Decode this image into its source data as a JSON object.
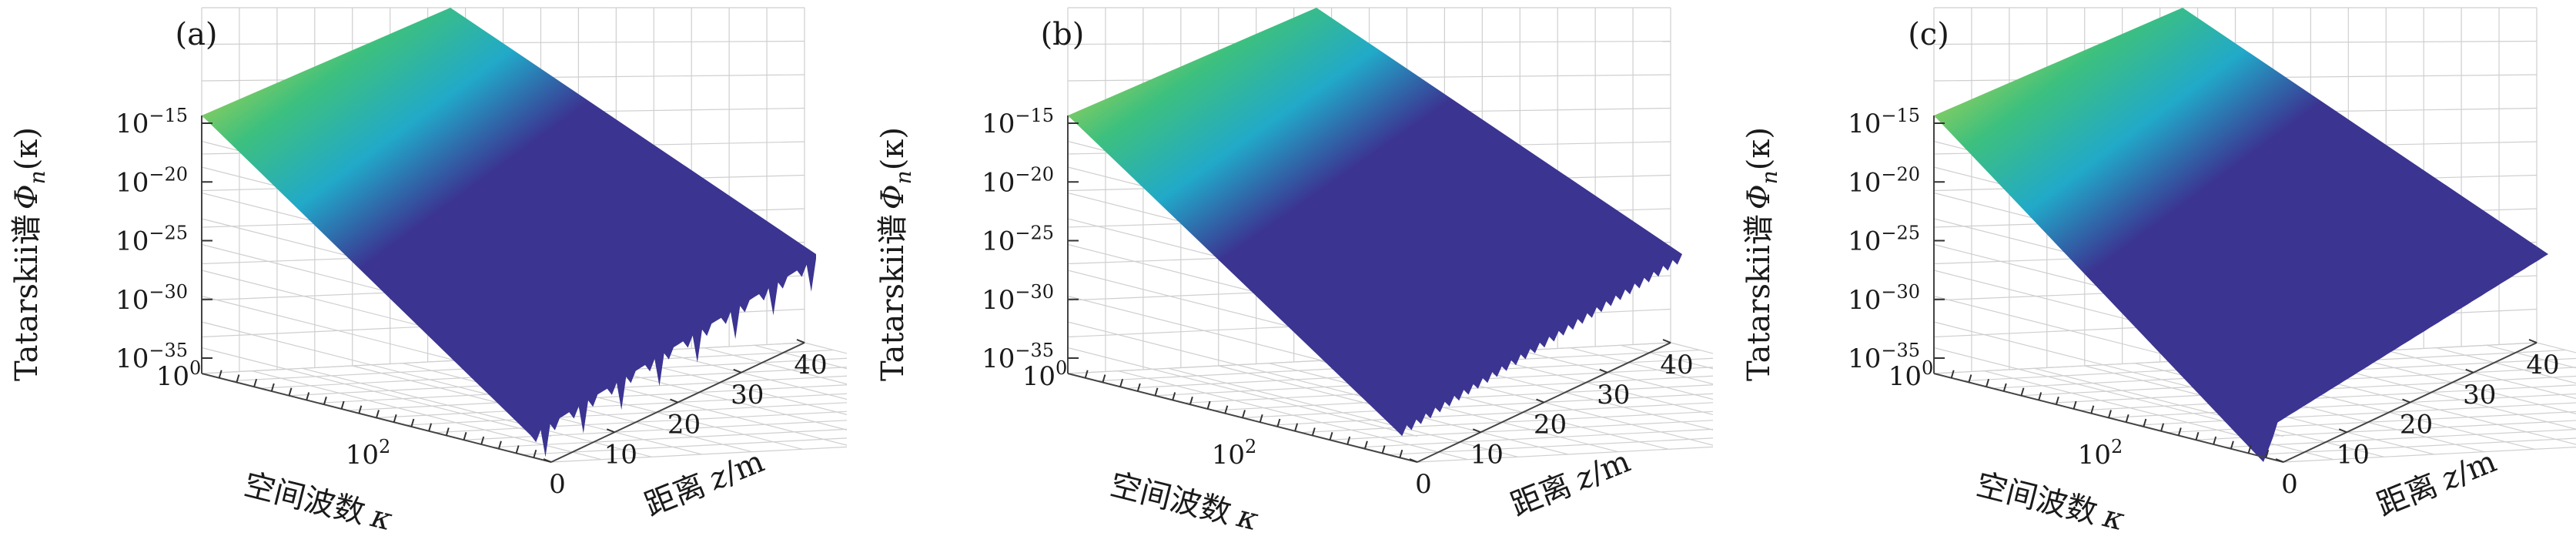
{
  "figure": {
    "panels": [
      "(a)",
      "(b)",
      "(c)"
    ]
  },
  "colors": {
    "surface_low": "#3b3491",
    "surface_mid": "#21a9c9",
    "surface_mid2": "#3dc07e",
    "surface_high": "#f3df34",
    "grid": "#cfcfcf"
  },
  "chart_data": [
    {
      "type": "surface",
      "panel": "(a)",
      "zlabel_text": "Tatarskii谱",
      "zlabel_math": "Φ",
      "zlabel_sub": "n",
      "zlabel_arg": "(κ)",
      "xlabel_text": "空间波数",
      "xlabel_math": "κ",
      "ylabel_text": "距离",
      "ylabel_math": "z",
      "ylabel_unit": "/m",
      "z_ticks": [
        {
          "base": "10",
          "exp": "−15"
        },
        {
          "base": "10",
          "exp": "−20"
        },
        {
          "base": "10",
          "exp": "−25"
        },
        {
          "base": "10",
          "exp": "−30"
        },
        {
          "base": "10",
          "exp": "−35"
        }
      ],
      "x_ticks": [
        {
          "base": "10",
          "exp": "0"
        },
        {
          "base": "10",
          "exp": "2"
        }
      ],
      "y_ticks": [
        "0",
        "10",
        "20",
        "30",
        "40"
      ],
      "z_scale": "log",
      "x_scale": "log",
      "z_range": [
        1e-35,
        1e-13
      ],
      "y_range": [
        0,
        40
      ],
      "grid": true,
      "edge_profile": "strong oscillatory dips along far edge"
    },
    {
      "type": "surface",
      "panel": "(b)",
      "zlabel_text": "Tatarskii谱",
      "zlabel_math": "Φ",
      "zlabel_sub": "n",
      "zlabel_arg": "(κ)",
      "xlabel_text": "空间波数",
      "xlabel_math": "κ",
      "ylabel_text": "距离",
      "ylabel_math": "z",
      "ylabel_unit": "/m",
      "z_ticks": [
        {
          "base": "10",
          "exp": "−15"
        },
        {
          "base": "10",
          "exp": "−20"
        },
        {
          "base": "10",
          "exp": "−25"
        },
        {
          "base": "10",
          "exp": "−30"
        },
        {
          "base": "10",
          "exp": "−35"
        }
      ],
      "x_ticks": [
        {
          "base": "10",
          "exp": "0"
        },
        {
          "base": "10",
          "exp": "2"
        }
      ],
      "y_ticks": [
        "0",
        "10",
        "20",
        "30",
        "40"
      ],
      "z_scale": "log",
      "x_scale": "log",
      "z_range": [
        1e-35,
        1e-13
      ],
      "y_range": [
        0,
        40
      ],
      "grid": true,
      "edge_profile": "small ripples along far edge"
    },
    {
      "type": "surface",
      "panel": "(c)",
      "zlabel_text": "Tatarskii谱",
      "zlabel_math": "Φ",
      "zlabel_sub": "n",
      "zlabel_arg": "(κ)",
      "xlabel_text": "空间波数",
      "xlabel_math": "κ",
      "ylabel_text": "距离",
      "ylabel_math": "z",
      "ylabel_unit": "/m",
      "z_ticks": [
        {
          "base": "10",
          "exp": "−15"
        },
        {
          "base": "10",
          "exp": "−20"
        },
        {
          "base": "10",
          "exp": "−25"
        },
        {
          "base": "10",
          "exp": "−30"
        },
        {
          "base": "10",
          "exp": "−35"
        }
      ],
      "x_ticks": [
        {
          "base": "10",
          "exp": "0"
        },
        {
          "base": "10",
          "exp": "2"
        }
      ],
      "y_ticks": [
        "0",
        "10",
        "20",
        "30",
        "40"
      ],
      "z_scale": "log",
      "x_scale": "log",
      "z_range": [
        1e-35,
        1e-13
      ],
      "y_range": [
        0,
        40
      ],
      "grid": true,
      "edge_profile": "smooth, single dip near z = 0"
    }
  ]
}
